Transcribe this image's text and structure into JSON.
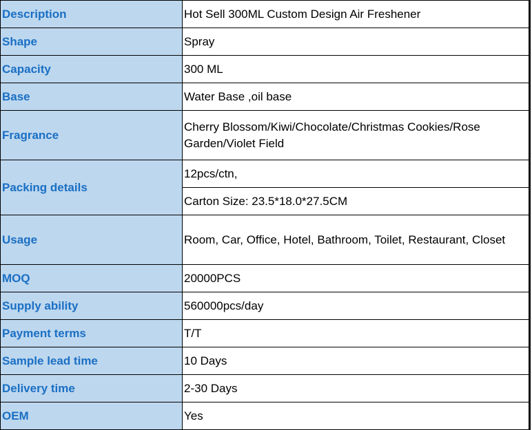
{
  "rows": [
    {
      "label": "Description",
      "value": "Hot Sell 300ML Custom Design Air Freshener"
    },
    {
      "label": "Shape",
      "value": "Spray"
    },
    {
      "label": "Capacity",
      "value": "300 ML"
    },
    {
      "label": "Base",
      "value": "Water Base ,oil base"
    },
    {
      "label": "Fragrance",
      "value": "Cherry Blossom/Kiwi/Chocolate/Christmas Cookies/Rose Garden/Violet Field"
    },
    {
      "label": "Packing details",
      "values": [
        "12pcs/ctn,",
        "Carton Size: 23.5*18.0*27.5CM"
      ]
    },
    {
      "label": "Usage",
      "value": "Room, Car, Office, Hotel, Bathroom, Toilet, Restaurant, Closet"
    },
    {
      "label": "MOQ",
      "value": "20000PCS"
    },
    {
      "label": "Supply ability",
      "value": "560000pcs/day"
    },
    {
      "label": "Payment terms",
      "value": "T/T"
    },
    {
      "label": "Sample lead time",
      "value": "10 Days"
    },
    {
      "label": "Delivery time",
      "value": "2-30 Days"
    },
    {
      "label": "OEM",
      "value": "Yes"
    }
  ]
}
